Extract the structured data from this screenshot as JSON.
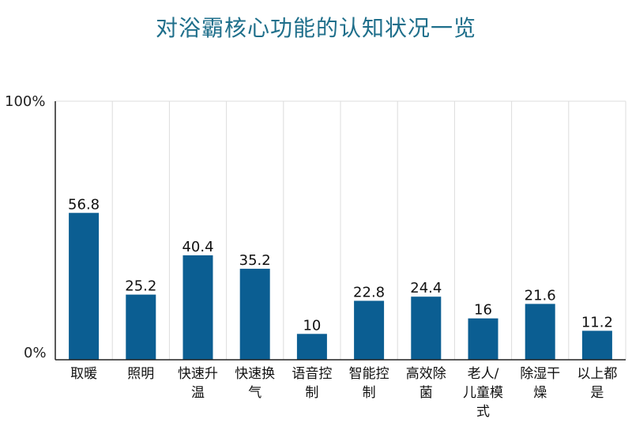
{
  "chart_data": {
    "type": "bar",
    "title": "对浴霸核心功能的认知状况一览",
    "categories": [
      "取暖",
      "照明",
      "快速升温",
      "快速换气",
      "语音控制",
      "智能控制",
      "高效除菌",
      "老人/儿童模式",
      "除湿干燥",
      "以上都是"
    ],
    "category_lines": [
      [
        "取暖"
      ],
      [
        "照明"
      ],
      [
        "快速升",
        "温"
      ],
      [
        "快速换",
        "气"
      ],
      [
        "语音控",
        "制"
      ],
      [
        "智能控",
        "制"
      ],
      [
        "高效除",
        "菌"
      ],
      [
        "老人/",
        "儿童模",
        "式"
      ],
      [
        "除湿干",
        "燥"
      ],
      [
        "以上都",
        "是"
      ]
    ],
    "values": [
      56.8,
      25.2,
      40.4,
      35.2,
      10,
      22.8,
      24.4,
      16,
      21.6,
      11.2
    ],
    "value_labels": [
      "56.8",
      "25.2",
      "40.4",
      "35.2",
      "10",
      "22.8",
      "24.4",
      "16",
      "21.6",
      "11.2"
    ],
    "ylim": [
      0,
      100
    ],
    "y_ticks": [
      "0%",
      "100%"
    ],
    "bar_color": "#0b5e92",
    "title_color": "#1f6f8b",
    "grid": true,
    "legend": "none",
    "xlabel": "",
    "ylabel": ""
  }
}
